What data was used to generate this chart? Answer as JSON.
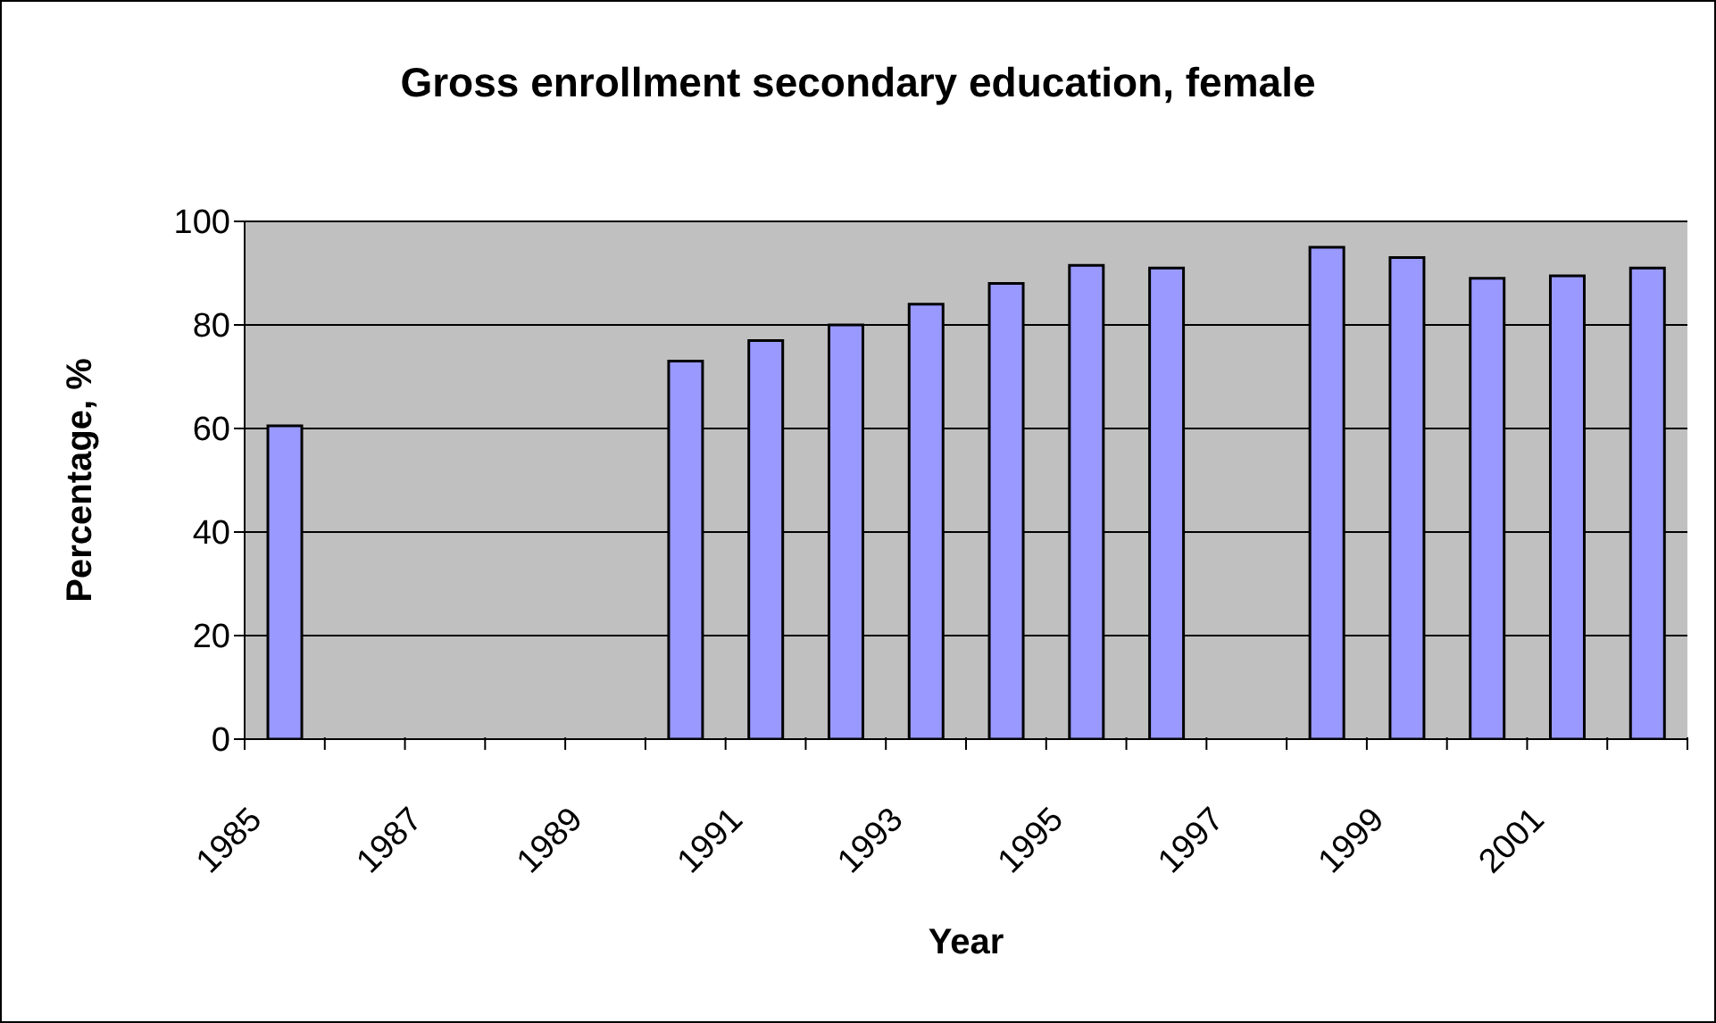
{
  "chart_data": {
    "type": "bar",
    "title": "Gross enrollment secondary education, female",
    "xlabel": "Year",
    "ylabel": "Percentage, %",
    "categories": [
      "1985",
      null,
      "1987",
      null,
      "1989",
      null,
      "1991",
      null,
      "1993",
      null,
      "1995",
      null,
      "1997",
      null,
      "1999",
      null,
      "2001",
      null
    ],
    "values": [
      60.5,
      null,
      null,
      null,
      null,
      73,
      77,
      80,
      84,
      88,
      91.5,
      91,
      null,
      95,
      93,
      89,
      89.5,
      91
    ],
    "color": "#9999ff",
    "ylim": [
      0,
      100
    ],
    "yticks": [
      0,
      20,
      40,
      60,
      80,
      100
    ],
    "grid": "y"
  }
}
